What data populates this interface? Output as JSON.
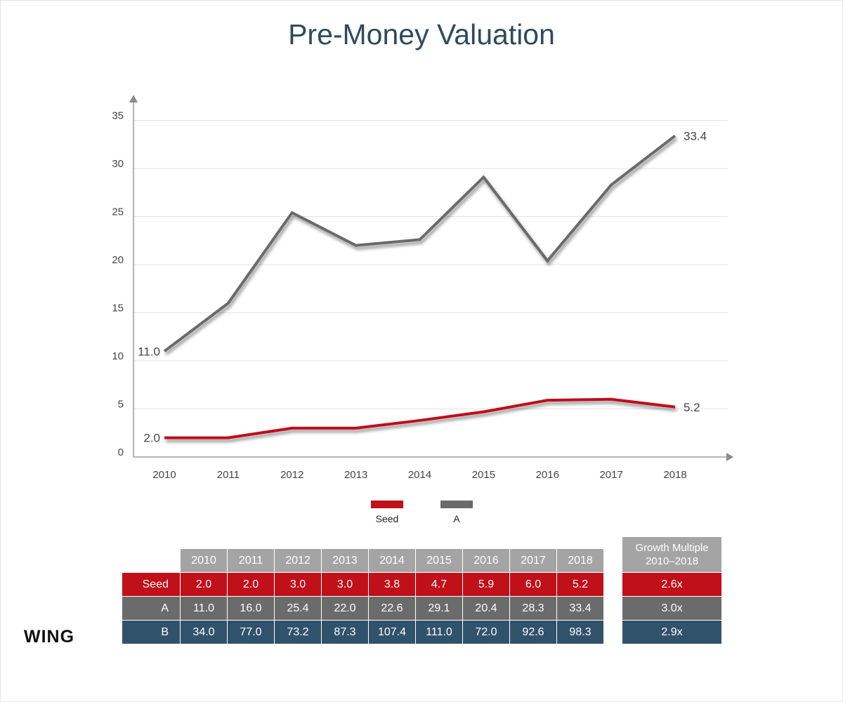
{
  "title": "Pre-Money Valuation",
  "logo_text": "WING",
  "colors": {
    "seed": "#c0101a",
    "a": "#6b6b6b",
    "b": "#31526b",
    "header": "#a4a4a4",
    "title": "#2f4a5e"
  },
  "chart_data": {
    "type": "line",
    "title": "Pre-Money Valuation",
    "xlabel": "",
    "ylabel": "",
    "categories": [
      "2010",
      "2011",
      "2012",
      "2013",
      "2014",
      "2015",
      "2016",
      "2017",
      "2018"
    ],
    "yticks": [
      "0",
      "5",
      "10",
      "15",
      "20",
      "25",
      "30",
      "35"
    ],
    "ylim": [
      0,
      35
    ],
    "grid": true,
    "legend": "bottom",
    "series": [
      {
        "name": "Seed",
        "color": "#c0101a",
        "values": [
          2.0,
          2.0,
          3.0,
          3.0,
          3.8,
          4.7,
          5.9,
          6.0,
          5.2
        ],
        "start_label": "2.0",
        "end_label": "5.2"
      },
      {
        "name": "A",
        "color": "#6b6b6b",
        "values": [
          11.0,
          16.0,
          25.4,
          22.0,
          22.6,
          29.1,
          20.4,
          28.3,
          33.4
        ],
        "start_label": "11.0",
        "end_label": "33.4"
      }
    ]
  },
  "legend": [
    {
      "label": "Seed",
      "color": "#c0101a"
    },
    {
      "label": "A",
      "color": "#6b6b6b"
    }
  ],
  "table": {
    "years": [
      "2010",
      "2011",
      "2012",
      "2013",
      "2014",
      "2015",
      "2016",
      "2017",
      "2018"
    ],
    "rows": [
      {
        "name": "Seed",
        "values": [
          "2.0",
          "2.0",
          "3.0",
          "3.0",
          "3.8",
          "4.7",
          "5.9",
          "6.0",
          "5.2"
        ]
      },
      {
        "name": "A",
        "values": [
          "11.0",
          "16.0",
          "25.4",
          "22.0",
          "22.6",
          "29.1",
          "20.4",
          "28.3",
          "33.4"
        ]
      },
      {
        "name": "B",
        "values": [
          "34.0",
          "77.0",
          "73.2",
          "87.3",
          "107.4",
          "111.0",
          "72.0",
          "92.6",
          "98.3"
        ]
      }
    ]
  },
  "growth": {
    "header_line1": "Growth Multiple",
    "header_line2": "2010–2018",
    "values": [
      "2.6x",
      "3.0x",
      "2.9x"
    ]
  }
}
